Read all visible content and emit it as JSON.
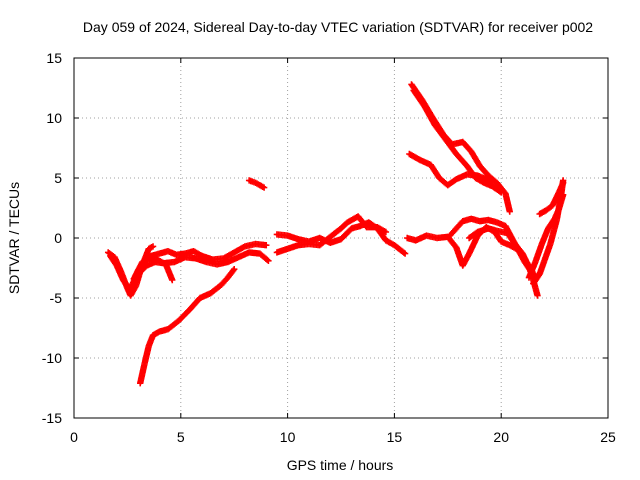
{
  "chart_data": {
    "type": "scatter",
    "title": "Day 059 of 2024, Sidereal Day-to-day VTEC variation (SDTVAR) for receiver p002",
    "xlabel": "GPS time / hours",
    "ylabel": "SDTVAR / TECUs",
    "xlim": [
      0,
      25
    ],
    "ylim": [
      -15,
      15
    ],
    "xticks": [
      0,
      5,
      10,
      15,
      20,
      25
    ],
    "yticks": [
      -15,
      -10,
      -5,
      0,
      5,
      10,
      15
    ],
    "grid": true,
    "marker_color": "#ff0000",
    "series": [
      {
        "values": [
          [
            1.6,
            -1.2
          ],
          [
            1.9,
            -1.6
          ],
          [
            2.2,
            -2.8
          ],
          [
            2.5,
            -4.2
          ],
          [
            2.65,
            -4.8
          ],
          [
            2.9,
            -4.0
          ],
          [
            3.1,
            -2.8
          ],
          [
            3.3,
            -1.8
          ],
          [
            3.5,
            -0.9
          ],
          [
            3.7,
            -0.7
          ]
        ]
      },
      {
        "values": [
          [
            1.7,
            -1.5
          ],
          [
            2.0,
            -2.3
          ],
          [
            2.3,
            -3.5
          ],
          [
            2.6,
            -4.3
          ],
          [
            2.8,
            -3.6
          ],
          [
            3.0,
            -2.7
          ],
          [
            3.2,
            -2.2
          ],
          [
            3.5,
            -1.7
          ],
          [
            3.9,
            -1.8
          ],
          [
            4.3,
            -2.2
          ],
          [
            4.6,
            -3.5
          ]
        ]
      },
      {
        "values": [
          [
            2.8,
            -3.4
          ],
          [
            3.2,
            -2.0
          ],
          [
            3.6,
            -1.5
          ],
          [
            4.0,
            -1.3
          ],
          [
            4.4,
            -1.1
          ],
          [
            4.8,
            -1.4
          ],
          [
            5.2,
            -1.3
          ],
          [
            5.6,
            -1.1
          ],
          [
            6.0,
            -1.5
          ],
          [
            6.5,
            -1.8
          ],
          [
            7.0,
            -1.7
          ],
          [
            7.5,
            -1.2
          ],
          [
            8.0,
            -0.7
          ],
          [
            8.5,
            -0.5
          ],
          [
            9.0,
            -0.6
          ]
        ]
      },
      {
        "values": [
          [
            3.0,
            -3.0
          ],
          [
            3.4,
            -2.3
          ],
          [
            3.8,
            -2.0
          ],
          [
            4.2,
            -2.1
          ],
          [
            4.7,
            -2.0
          ],
          [
            5.2,
            -1.6
          ],
          [
            5.7,
            -1.7
          ],
          [
            6.2,
            -2.0
          ],
          [
            6.7,
            -2.2
          ],
          [
            7.2,
            -2.0
          ],
          [
            7.7,
            -1.6
          ],
          [
            8.2,
            -1.2
          ],
          [
            8.7,
            -1.3
          ],
          [
            9.1,
            -1.9
          ]
        ]
      },
      {
        "values": [
          [
            3.1,
            -12.1
          ],
          [
            3.3,
            -10.5
          ],
          [
            3.5,
            -9.0
          ],
          [
            3.7,
            -8.1
          ],
          [
            4.0,
            -7.8
          ],
          [
            4.4,
            -7.6
          ],
          [
            4.9,
            -6.9
          ],
          [
            5.4,
            -6.0
          ],
          [
            5.9,
            -5.0
          ],
          [
            6.4,
            -4.6
          ],
          [
            6.9,
            -3.9
          ],
          [
            7.2,
            -3.3
          ],
          [
            7.5,
            -2.6
          ]
        ]
      },
      {
        "values": [
          [
            8.2,
            4.8
          ],
          [
            8.5,
            4.6
          ],
          [
            8.9,
            4.2
          ]
        ]
      },
      {
        "values": [
          [
            9.5,
            0.3
          ],
          [
            10.0,
            0.2
          ],
          [
            10.5,
            -0.1
          ],
          [
            11.0,
            -0.3
          ],
          [
            11.5,
            0.0
          ],
          [
            12.0,
            -0.4
          ],
          [
            12.5,
            -0.1
          ],
          [
            13.0,
            0.8
          ],
          [
            13.4,
            1.0
          ],
          [
            13.8,
            1.3
          ],
          [
            14.2,
            0.8
          ],
          [
            14.6,
            -0.2
          ],
          [
            15.0,
            -0.6
          ],
          [
            15.5,
            -1.3
          ]
        ]
      },
      {
        "values": [
          [
            9.5,
            -1.2
          ],
          [
            10.0,
            -0.9
          ],
          [
            10.5,
            -0.6
          ],
          [
            11.0,
            -0.5
          ],
          [
            11.5,
            -0.6
          ],
          [
            12.0,
            0.1
          ],
          [
            12.5,
            0.8
          ],
          [
            12.8,
            1.3
          ],
          [
            13.3,
            1.8
          ],
          [
            13.7,
            0.9
          ],
          [
            14.2,
            0.9
          ],
          [
            14.6,
            0.5
          ]
        ]
      },
      {
        "values": [
          [
            15.6,
            0.0
          ],
          [
            16.0,
            -0.2
          ],
          [
            16.5,
            0.2
          ],
          [
            17.0,
            0.0
          ],
          [
            17.5,
            0.1
          ],
          [
            17.9,
            -0.8
          ],
          [
            18.2,
            -2.3
          ],
          [
            18.5,
            -1.3
          ],
          [
            18.9,
            0.2
          ],
          [
            19.3,
            0.9
          ],
          [
            19.7,
            0.5
          ],
          [
            20.0,
            -0.3
          ],
          [
            20.4,
            -0.6
          ],
          [
            20.8,
            -1.0
          ],
          [
            21.1,
            -1.8
          ],
          [
            21.4,
            -2.6
          ],
          [
            21.6,
            -3.3
          ]
        ]
      },
      {
        "values": [
          [
            17.6,
            0.2
          ],
          [
            17.9,
            0.8
          ],
          [
            18.2,
            1.4
          ],
          [
            18.6,
            1.6
          ],
          [
            19.0,
            1.4
          ],
          [
            19.4,
            1.5
          ],
          [
            19.8,
            1.3
          ],
          [
            20.2,
            1.0
          ],
          [
            20.5,
            0.0
          ],
          [
            20.8,
            -1.0
          ],
          [
            21.1,
            -2.0
          ],
          [
            21.4,
            -2.8
          ],
          [
            21.6,
            -3.5
          ]
        ]
      },
      {
        "values": [
          [
            18.5,
            0.0
          ],
          [
            18.9,
            0.5
          ],
          [
            19.4,
            0.8
          ],
          [
            19.8,
            0.6
          ],
          [
            20.3,
            0.4
          ],
          [
            20.6,
            -0.4
          ],
          [
            21.0,
            -1.3
          ],
          [
            21.3,
            -2.4
          ],
          [
            21.5,
            -3.5
          ],
          [
            21.7,
            -4.8
          ]
        ]
      },
      {
        "values": [
          [
            15.8,
            12.8
          ],
          [
            16.3,
            11.5
          ],
          [
            16.8,
            10.0
          ],
          [
            17.3,
            8.6
          ],
          [
            17.7,
            7.8
          ],
          [
            18.2,
            8.0
          ],
          [
            18.6,
            7.2
          ],
          [
            19.0,
            6.0
          ],
          [
            19.4,
            5.2
          ],
          [
            19.8,
            4.6
          ],
          [
            20.2,
            3.7
          ],
          [
            20.4,
            2.2
          ]
        ]
      },
      {
        "values": [
          [
            15.9,
            12.3
          ],
          [
            16.4,
            11.0
          ],
          [
            16.9,
            9.4
          ],
          [
            17.4,
            8.2
          ],
          [
            17.9,
            7.0
          ],
          [
            18.4,
            6.0
          ],
          [
            18.8,
            5.0
          ],
          [
            19.2,
            4.6
          ],
          [
            19.6,
            4.3
          ],
          [
            20.0,
            3.8
          ]
        ]
      },
      {
        "values": [
          [
            15.7,
            7.0
          ],
          [
            16.2,
            6.5
          ],
          [
            16.7,
            6.1
          ],
          [
            17.1,
            5.0
          ],
          [
            17.5,
            4.4
          ],
          [
            17.9,
            4.9
          ],
          [
            18.4,
            5.3
          ],
          [
            18.9,
            5.2
          ],
          [
            19.3,
            4.9
          ],
          [
            19.7,
            4.2
          ]
        ]
      },
      {
        "values": [
          [
            21.5,
            -3.8
          ],
          [
            21.8,
            -3.0
          ],
          [
            22.0,
            -2.0
          ],
          [
            22.3,
            -0.5
          ],
          [
            22.6,
            1.5
          ],
          [
            22.8,
            3.5
          ],
          [
            22.9,
            4.8
          ]
        ]
      },
      {
        "values": [
          [
            21.3,
            -3.3
          ],
          [
            21.6,
            -2.0
          ],
          [
            21.9,
            -0.5
          ],
          [
            22.2,
            0.8
          ],
          [
            22.5,
            1.6
          ],
          [
            22.7,
            2.4
          ],
          [
            22.9,
            3.6
          ]
        ]
      },
      {
        "values": [
          [
            21.8,
            2.0
          ],
          [
            22.1,
            2.3
          ],
          [
            22.4,
            2.7
          ],
          [
            22.7,
            3.8
          ],
          [
            22.9,
            4.6
          ]
        ]
      }
    ]
  }
}
